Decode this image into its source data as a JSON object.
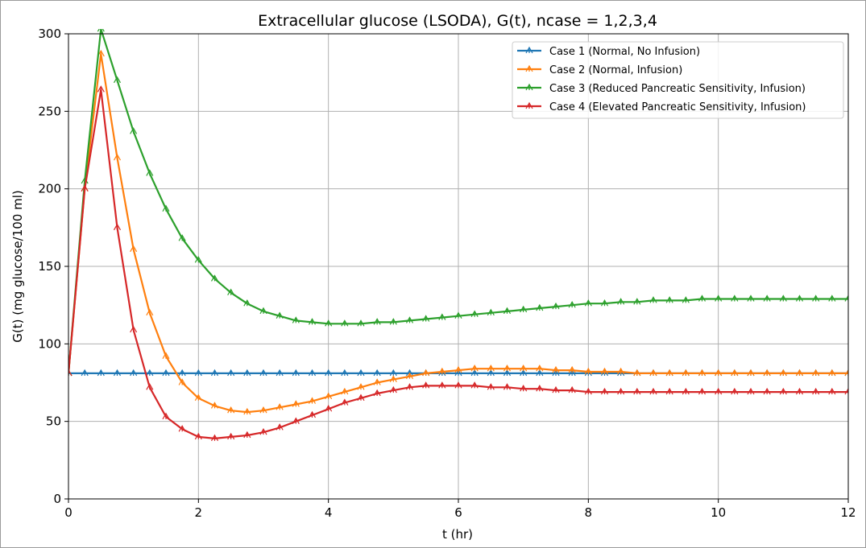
{
  "chart_data": {
    "type": "line",
    "title": "Extracellular glucose (LSODA), G(t), ncase = 1,2,3,4",
    "xlabel": "t (hr)",
    "ylabel": "G(t) (mg glucose/100 ml)",
    "xlim": [
      0,
      12
    ],
    "ylim": [
      0,
      300
    ],
    "xticks": [
      0,
      2,
      4,
      6,
      8,
      10,
      12
    ],
    "yticks": [
      0,
      50,
      100,
      150,
      200,
      250,
      300
    ],
    "grid": true,
    "legend_position": "top-right",
    "marker": "tri",
    "x": [
      0,
      0.25,
      0.5,
      0.75,
      1.0,
      1.25,
      1.5,
      1.75,
      2.0,
      2.25,
      2.5,
      2.75,
      3.0,
      3.25,
      3.5,
      3.75,
      4.0,
      4.25,
      4.5,
      4.75,
      5.0,
      5.25,
      5.5,
      5.75,
      6.0,
      6.25,
      6.5,
      6.75,
      7.0,
      7.25,
      7.5,
      7.75,
      8.0,
      8.25,
      8.5,
      8.75,
      9.0,
      9.25,
      9.5,
      9.75,
      10.0,
      10.25,
      10.5,
      10.75,
      11.0,
      11.25,
      11.5,
      11.75,
      12.0
    ],
    "series": [
      {
        "name": "Case 1 (Normal, No Infusion)",
        "color": "#1f77b4",
        "values": [
          81,
          81,
          81,
          81,
          81,
          81,
          81,
          81,
          81,
          81,
          81,
          81,
          81,
          81,
          81,
          81,
          81,
          81,
          81,
          81,
          81,
          81,
          81,
          81,
          81,
          81,
          81,
          81,
          81,
          81,
          81,
          81,
          81,
          81,
          81,
          81,
          81,
          81,
          81,
          81,
          81,
          81,
          81,
          81,
          81,
          81,
          81,
          81,
          81
        ]
      },
      {
        "name": "Case 2 (Normal, Infusion)",
        "color": "#ff7f0e",
        "values": [
          81,
          200,
          287,
          220,
          161,
          120,
          92,
          75,
          65,
          60,
          57,
          56,
          57,
          59,
          61,
          63,
          66,
          69,
          72,
          75,
          77,
          79,
          81,
          82,
          83,
          84,
          84,
          84,
          84,
          84,
          83,
          83,
          82,
          82,
          82,
          81,
          81,
          81,
          81,
          81,
          81,
          81,
          81,
          81,
          81,
          81,
          81,
          81,
          81
        ]
      },
      {
        "name": "Case 3 (Reduced Pancreatic Sensitivity, Infusion)",
        "color": "#2ca02c",
        "values": [
          81,
          205,
          303,
          270,
          237,
          210,
          187,
          168,
          154,
          142,
          133,
          126,
          121,
          118,
          115,
          114,
          113,
          113,
          113,
          114,
          114,
          115,
          116,
          117,
          118,
          119,
          120,
          121,
          122,
          123,
          124,
          125,
          126,
          126,
          127,
          127,
          128,
          128,
          128,
          129,
          129,
          129,
          129,
          129,
          129,
          129,
          129,
          129,
          129
        ]
      },
      {
        "name": "Case 4 (Elevated Pancreatic Sensitivity, Infusion)",
        "color": "#d62728",
        "values": [
          81,
          200,
          264,
          175,
          109,
          72,
          53,
          45,
          40,
          39,
          40,
          41,
          43,
          46,
          50,
          54,
          58,
          62,
          65,
          68,
          70,
          72,
          73,
          73,
          73,
          73,
          72,
          72,
          71,
          71,
          70,
          70,
          69,
          69,
          69,
          69,
          69,
          69,
          69,
          69,
          69,
          69,
          69,
          69,
          69,
          69,
          69,
          69,
          69
        ]
      }
    ]
  }
}
